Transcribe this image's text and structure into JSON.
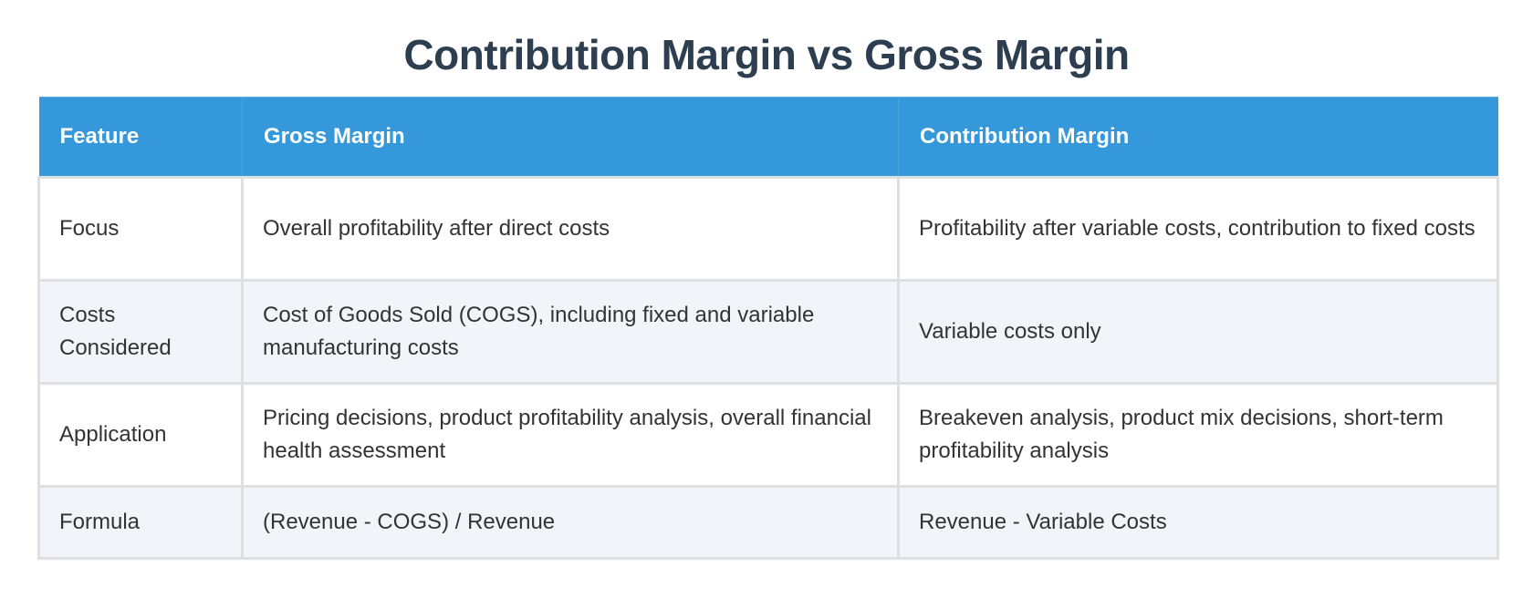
{
  "title": "Contribution Margin vs Gross Margin",
  "table": {
    "headers": [
      "Feature",
      "Gross Margin",
      "Contribution Margin"
    ],
    "rows": [
      {
        "feature": "Focus",
        "gross_margin": "Overall profitability after direct costs",
        "contribution_margin": "Profitability after variable costs, contribution to fixed costs"
      },
      {
        "feature": "Costs Considered",
        "gross_margin": "Cost of Goods Sold (COGS), including fixed and variable manufacturing costs",
        "contribution_margin": "Variable costs only"
      },
      {
        "feature": "Application",
        "gross_margin": "Pricing decisions, product profitability analysis, overall financial health assessment",
        "contribution_margin": "Breakeven analysis, product mix decisions, short-term profitability analysis"
      },
      {
        "feature": "Formula",
        "gross_margin": "(Revenue - COGS) / Revenue",
        "contribution_margin": "Revenue - Variable Costs"
      }
    ]
  },
  "colors": {
    "title": "#2c3e50",
    "header_bg": "#3498db",
    "header_text": "#ffffff",
    "row_alt_bg": "#f1f4f9",
    "row_bg": "#ffffff",
    "border": "#dfdfdf",
    "body_text": "#333333"
  }
}
